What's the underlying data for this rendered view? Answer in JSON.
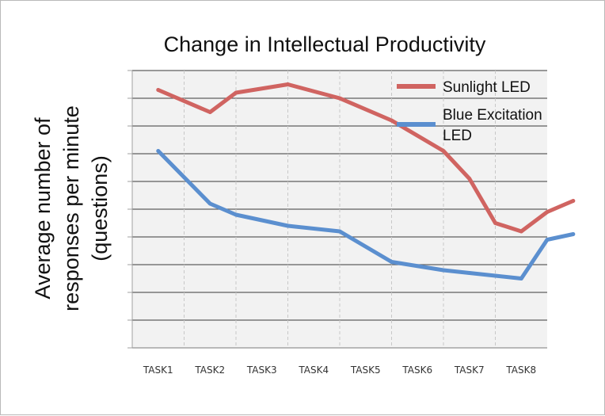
{
  "chart_data": {
    "type": "line",
    "title": "Change in Intellectual Productivity",
    "ylabel": [
      "Average number of",
      "responses per minute",
      "(questions)"
    ],
    "xlabel": "",
    "categories": [
      "TASK1",
      "TASK2",
      "TASK3",
      "TASK4",
      "TASK5",
      "TASK6",
      "TASK7",
      "TASK8"
    ],
    "x": [
      0.5,
      1.5,
      2.0,
      3.0,
      4.0,
      5.0,
      6.0,
      6.5,
      7.0,
      7.5,
      8.0,
      8.5
    ],
    "series": [
      {
        "name": "Sunlight LED",
        "legend_lines": [
          "Sunlight LED"
        ],
        "color": "#d06461",
        "values": [
          9.3,
          8.5,
          9.2,
          9.5,
          9.0,
          8.2,
          7.1,
          6.1,
          4.5,
          4.2,
          4.9,
          5.3
        ]
      },
      {
        "name": "Blue Excitation LED",
        "legend_lines": [
          "Blue Excitation",
          "LED"
        ],
        "color": "#5b8fcf",
        "values": [
          7.1,
          5.2,
          4.8,
          4.4,
          4.2,
          3.1,
          2.8,
          2.7,
          2.6,
          2.5,
          3.9,
          4.1
        ]
      }
    ],
    "ylim": [
      0,
      10
    ],
    "xlim": [
      0,
      8
    ],
    "y_ticks": [
      0,
      1,
      2,
      3,
      4,
      5,
      6,
      7,
      8,
      9,
      10
    ],
    "ytick_labels_shown": false,
    "grid": true,
    "legend_position": "top-right"
  }
}
